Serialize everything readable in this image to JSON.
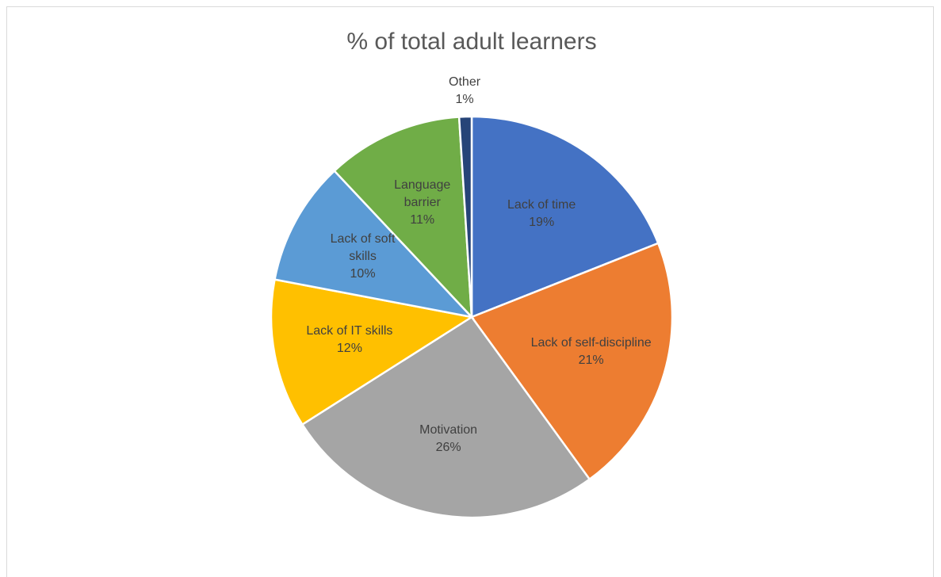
{
  "chart_data": {
    "type": "pie",
    "title": "% of total adult learners",
    "categories": [
      "Lack of time",
      "Lack of self-discipline",
      "Motivation",
      "Lack of IT skills",
      "Lack of soft skills",
      "Language barrier",
      "Other"
    ],
    "values": [
      19,
      21,
      26,
      12,
      10,
      11,
      1
    ],
    "value_labels": [
      "19%",
      "21%",
      "26%",
      "12%",
      "10%",
      "11%",
      "1%"
    ],
    "colors": [
      "#4472c4",
      "#ed7d31",
      "#a5a5a5",
      "#ffc000",
      "#5b9bd5",
      "#70ad47",
      "#264478"
    ]
  }
}
